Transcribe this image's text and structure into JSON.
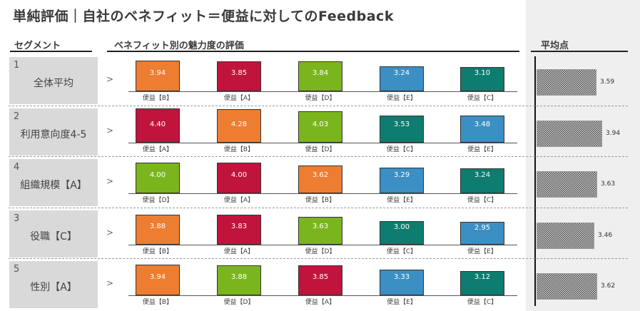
{
  "title": "単純評価｜自社のベネフィット＝便益に対してのFeedback",
  "headers": {
    "segment": "セグメント",
    "rating": "ベネフィット別の魅力度の評価",
    "average": "平均点"
  },
  "arrow_glyph": ">",
  "colors": {
    "orange": "#ed7d31",
    "red": "#c0143c",
    "green": "#7ab51d",
    "blue": "#3b8fc3",
    "teal": "#0e7c6e",
    "pattern": "#555555"
  },
  "chart_data": {
    "type": "bar",
    "ylim": [
      0,
      4.6
    ],
    "avg_xlim": [
      0,
      4.1
    ],
    "rows": [
      {
        "num": "1",
        "segment": "全体平均",
        "bars": [
          {
            "label": "便益【B】",
            "value": 3.94,
            "value_text": "3.94",
            "color": "orange"
          },
          {
            "label": "便益【A】",
            "value": 3.85,
            "value_text": "3.85",
            "color": "red"
          },
          {
            "label": "便益【D】",
            "value": 3.84,
            "value_text": "3.84",
            "color": "green"
          },
          {
            "label": "便益【E】",
            "value": 3.24,
            "value_text": "3.24",
            "color": "blue"
          },
          {
            "label": "便益【C】",
            "value": 3.1,
            "value_text": "3.10",
            "color": "teal"
          }
        ],
        "average": 3.59,
        "average_text": "3.59"
      },
      {
        "num": "2",
        "segment": "利用意向度4-5",
        "bars": [
          {
            "label": "便益【A】",
            "value": 4.4,
            "value_text": "4.40",
            "color": "red"
          },
          {
            "label": "便益【B】",
            "value": 4.28,
            "value_text": "4.28",
            "color": "orange"
          },
          {
            "label": "便益【D】",
            "value": 4.03,
            "value_text": "4.03",
            "color": "green"
          },
          {
            "label": "便益【C】",
            "value": 3.53,
            "value_text": "3.53",
            "color": "teal"
          },
          {
            "label": "便益【E】",
            "value": 3.48,
            "value_text": "3.48",
            "color": "blue"
          }
        ],
        "average": 3.94,
        "average_text": "3.94"
      },
      {
        "num": "4",
        "segment": "組織規模【A】",
        "bars": [
          {
            "label": "便益【D】",
            "value": 4.0,
            "value_text": "4.00",
            "color": "green"
          },
          {
            "label": "便益【A】",
            "value": 4.0,
            "value_text": "4.00",
            "color": "red"
          },
          {
            "label": "便益【B】",
            "value": 3.62,
            "value_text": "3.62",
            "color": "orange"
          },
          {
            "label": "便益【E】",
            "value": 3.29,
            "value_text": "3.29",
            "color": "blue"
          },
          {
            "label": "便益【C】",
            "value": 3.24,
            "value_text": "3.24",
            "color": "teal"
          }
        ],
        "average": 3.63,
        "average_text": "3.63"
      },
      {
        "num": "3",
        "segment": "役職【C】",
        "bars": [
          {
            "label": "便益【B】",
            "value": 3.88,
            "value_text": "3.88",
            "color": "orange"
          },
          {
            "label": "便益【A】",
            "value": 3.83,
            "value_text": "3.83",
            "color": "red"
          },
          {
            "label": "便益【D】",
            "value": 3.63,
            "value_text": "3.63",
            "color": "green"
          },
          {
            "label": "便益【C】",
            "value": 3.0,
            "value_text": "3.00",
            "color": "teal"
          },
          {
            "label": "便益【E】",
            "value": 2.95,
            "value_text": "2.95",
            "color": "blue"
          }
        ],
        "average": 3.46,
        "average_text": "3.46"
      },
      {
        "num": "5",
        "segment": "性別【A】",
        "bars": [
          {
            "label": "便益【B】",
            "value": 3.94,
            "value_text": "3.94",
            "color": "orange"
          },
          {
            "label": "便益【D】",
            "value": 3.88,
            "value_text": "3.88",
            "color": "green"
          },
          {
            "label": "便益【A】",
            "value": 3.85,
            "value_text": "3.85",
            "color": "red"
          },
          {
            "label": "便益【E】",
            "value": 3.33,
            "value_text": "3.33",
            "color": "blue"
          },
          {
            "label": "便益【C】",
            "value": 3.12,
            "value_text": "3.12",
            "color": "teal"
          }
        ],
        "average": 3.62,
        "average_text": "3.62"
      }
    ]
  }
}
